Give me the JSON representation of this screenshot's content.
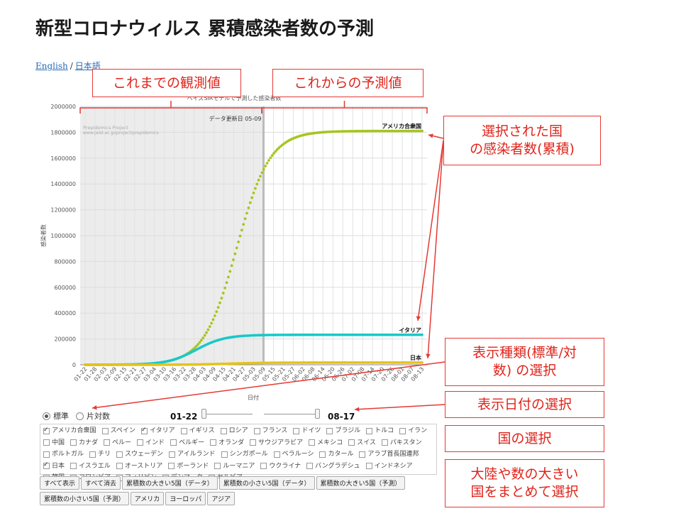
{
  "page": {
    "title": "新型コロナウィルス 累積感染者数の予測",
    "lang_english": "English",
    "lang_separator": "/",
    "lang_japanese": "日本語"
  },
  "chart_data": {
    "type": "line",
    "title": "ベイズSIRモデルで予測した感染者数",
    "update_label": "データ更新日 05-09",
    "watermark_line1": "Prepidemics Project",
    "watermark_line2": "www.jaist.ac.jp/project/prepidemics",
    "xlabel": "日付",
    "ylabel": "感染者数",
    "ylim": [
      0,
      2000000
    ],
    "yticks": [
      0,
      200000,
      400000,
      600000,
      800000,
      1000000,
      1200000,
      1400000,
      1600000,
      1800000,
      2000000
    ],
    "ytick_labels": [
      "0",
      "200000",
      "400000",
      "600000",
      "800000",
      "1000000",
      "1200000",
      "1400000",
      "1600000",
      "1800000",
      "2000000"
    ],
    "xtick_labels": [
      "01-22",
      "01-28",
      "02-03",
      "02-09",
      "02-15",
      "02-21",
      "02-27",
      "03-04",
      "03-10",
      "03-16",
      "03-22",
      "03-28",
      "04-03",
      "04-09",
      "04-15",
      "04-21",
      "04-27",
      "05-03",
      "05-09",
      "05-15",
      "05-21",
      "05-27",
      "06-02",
      "06-08",
      "06-14",
      "06-20",
      "06-26",
      "07-02",
      "07-08",
      "07-14",
      "07-20",
      "07-26",
      "08-01",
      "08-07",
      "08-13"
    ],
    "observed_end_index": 18,
    "grid": true,
    "series": [
      {
        "name": "アメリカ合衆国",
        "color": "#a6c51f",
        "kind": "logistic",
        "K": 1810000,
        "k": 0.1,
        "t0": 15.3,
        "label_value": 1810000
      },
      {
        "name": "イタリア",
        "color": "#18c8c8",
        "kind": "logistic",
        "K": 232000,
        "k": 0.115,
        "t0": 11.2,
        "label_value": 232000
      },
      {
        "name": "日本",
        "color": "#e6c21a",
        "kind": "logistic",
        "K": 17000,
        "k": 0.09,
        "t0": 14.5,
        "label_value": 17000
      }
    ]
  },
  "controls": {
    "mode_standard": "標準",
    "mode_log": "片対数",
    "date_start": "01-22",
    "date_end": "08-17"
  },
  "countries": [
    {
      "name": "アメリカ合衆国",
      "checked": true
    },
    {
      "name": "スペイン",
      "checked": false
    },
    {
      "name": "イタリア",
      "checked": true
    },
    {
      "name": "イギリス",
      "checked": false
    },
    {
      "name": "ロシア",
      "checked": false
    },
    {
      "name": "フランス",
      "checked": false
    },
    {
      "name": "ドイツ",
      "checked": false
    },
    {
      "name": "ブラジル",
      "checked": false
    },
    {
      "name": "トルコ",
      "checked": false
    },
    {
      "name": "イラン",
      "checked": false
    },
    {
      "name": "中国",
      "checked": false
    },
    {
      "name": "カナダ",
      "checked": false
    },
    {
      "name": "ペルー",
      "checked": false
    },
    {
      "name": "インド",
      "checked": false
    },
    {
      "name": "ベルギー",
      "checked": false
    },
    {
      "name": "オランダ",
      "checked": false
    },
    {
      "name": "サウジアラビア",
      "checked": false
    },
    {
      "name": "メキシコ",
      "checked": false
    },
    {
      "name": "スイス",
      "checked": false
    },
    {
      "name": "パキスタン",
      "checked": false
    },
    {
      "name": "ポルトガル",
      "checked": false
    },
    {
      "name": "チリ",
      "checked": false
    },
    {
      "name": "スウェーデン",
      "checked": false
    },
    {
      "name": "アイルランド",
      "checked": false
    },
    {
      "name": "シンガポール",
      "checked": false
    },
    {
      "name": "ベラルーシ",
      "checked": false
    },
    {
      "name": "カタール",
      "checked": false
    },
    {
      "name": "アラブ首長国連邦",
      "checked": false
    },
    {
      "name": "日本",
      "checked": true
    },
    {
      "name": "イスラエル",
      "checked": false
    },
    {
      "name": "オーストリア",
      "checked": false
    },
    {
      "name": "ポーランド",
      "checked": false
    },
    {
      "name": "ルーマニア",
      "checked": false
    },
    {
      "name": "ウクライナ",
      "checked": false
    },
    {
      "name": "バングラデシュ",
      "checked": false
    },
    {
      "name": "インドネシア",
      "checked": false
    },
    {
      "name": "韓国",
      "checked": false
    },
    {
      "name": "コロンビア",
      "checked": false
    },
    {
      "name": "フィリピン",
      "checked": false
    },
    {
      "name": "デンマーク",
      "checked": false
    },
    {
      "name": "セルビア",
      "checked": false
    }
  ],
  "group_buttons": [
    "すべて表示",
    "すべて消去",
    "累積数の大きい5国（データ）",
    "累積数の小さい5国（データ）",
    "累積数の大きい5国（予測）",
    "累積数の小さい5国（予測）",
    "アメリカ",
    "ヨーロッパ",
    "アジア"
  ],
  "callouts": {
    "observed": "これまでの観測値",
    "predicted": "これからの予測値",
    "selected": "選択された国\nの感染者数(累積)",
    "display_type": "表示種類(標準/対\n数) の選択",
    "date_select": "表示日付の選択",
    "country_select": "国の選択",
    "group_select": "大陸や数の大きい\n国をまとめて選択"
  },
  "colors": {
    "annotation": "#e53935",
    "observed_shade": "#ececec",
    "divider": "#bbbbbb"
  }
}
